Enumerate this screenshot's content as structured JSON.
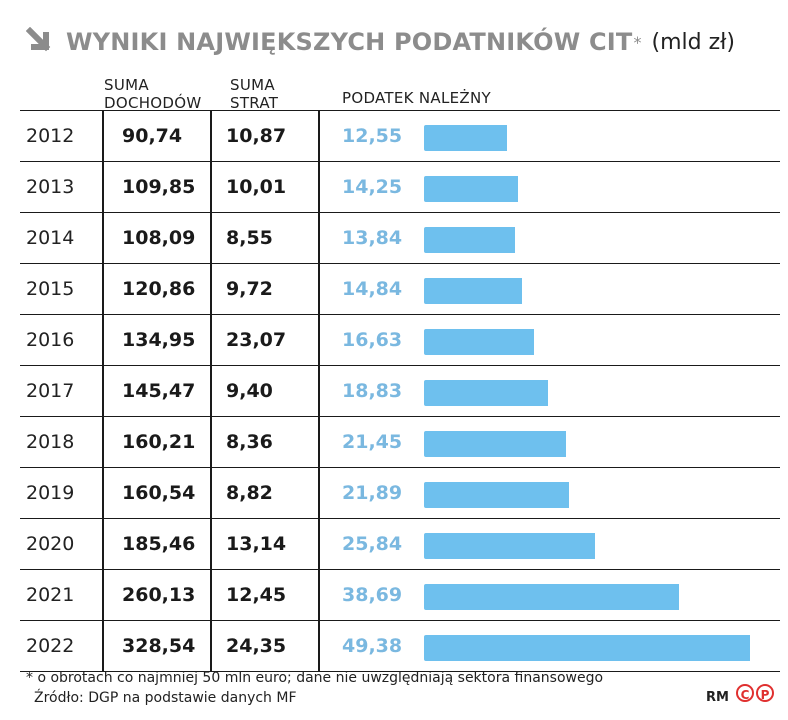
{
  "title": {
    "main": "WYNIKI NAJWIĘKSZYCH PODATNIKÓW CIT",
    "star": "*",
    "unit": "(mld zł)"
  },
  "headers": {
    "income": "SUMA DOCHODÓW",
    "loss": "SUMA STRAT",
    "tax": "PODATEK NALEŻNY"
  },
  "colors": {
    "bar": "#6ec0ee",
    "tax_text": "#7ab8e0",
    "title": "#8c8c8c",
    "logo": "#e0302f"
  },
  "chart_data": {
    "type": "table",
    "columns": [
      "",
      "SUMA DOCHODÓW",
      "SUMA STRAT",
      "PODATEK NALEŻNY"
    ],
    "rows": [
      {
        "year": "2012",
        "income": "90,74",
        "loss": "10,87",
        "tax": "12,55",
        "tax_value": 12.55
      },
      {
        "year": "2013",
        "income": "109,85",
        "loss": "10,01",
        "tax": "14,25",
        "tax_value": 14.25
      },
      {
        "year": "2014",
        "income": "108,09",
        "loss": "8,55",
        "tax": "13,84",
        "tax_value": 13.84
      },
      {
        "year": "2015",
        "income": "120,86",
        "loss": "9,72",
        "tax": "14,84",
        "tax_value": 14.84
      },
      {
        "year": "2016",
        "income": "134,95",
        "loss": "23,07",
        "tax": "16,63",
        "tax_value": 16.63
      },
      {
        "year": "2017",
        "income": "145,47",
        "loss": "9,40",
        "tax": "18,83",
        "tax_value": 18.83
      },
      {
        "year": "2018",
        "income": "160,21",
        "loss": "8,36",
        "tax": "21,45",
        "tax_value": 21.45
      },
      {
        "year": "2019",
        "income": "160,54",
        "loss": "8,82",
        "tax": "21,89",
        "tax_value": 21.89
      },
      {
        "year": "2020",
        "income": "185,46",
        "loss": "13,14",
        "tax": "25,84",
        "tax_value": 25.84
      },
      {
        "year": "2021",
        "income": "260,13",
        "loss": "12,45",
        "tax": "38,69",
        "tax_value": 38.69
      },
      {
        "year": "2022",
        "income": "328,54",
        "loss": "24,35",
        "tax": "49,38",
        "tax_value": 49.38
      }
    ]
  },
  "footnote": "* o obrotach co najmniej 50 mln euro; dane nie uwzględniają sektora finansowego",
  "source": "Źródło: DGP na podstawie danych MF",
  "credit": "RM",
  "logo": {
    "c": "C",
    "p": "P"
  }
}
